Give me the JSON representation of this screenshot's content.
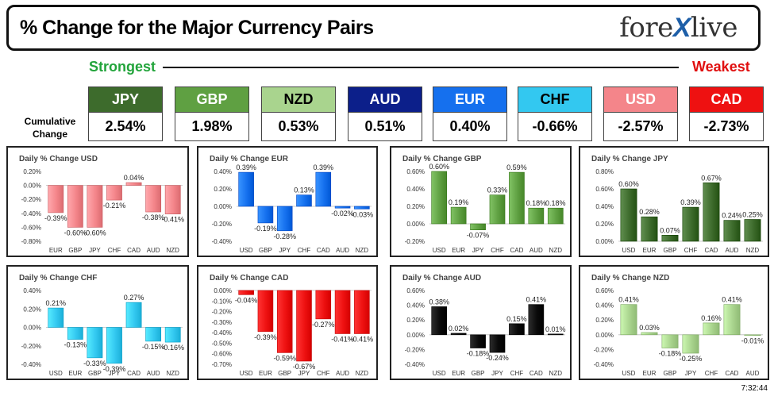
{
  "header": {
    "title": "% Change for the Major Currency Pairs",
    "logo_left": "fore",
    "logo_x": "X",
    "logo_right": "live"
  },
  "ranking": {
    "strongest_label": "Strongest",
    "weakest_label": "Weakest",
    "cumulative_label_line1": "Cumulative",
    "cumulative_label_line2": "Change",
    "currencies": [
      {
        "code": "JPY",
        "change": "2.54%",
        "color": "#3d6b2c",
        "text_color": "#ffffff"
      },
      {
        "code": "GBP",
        "change": "1.98%",
        "color": "#5fa042",
        "text_color": "#ffffff"
      },
      {
        "code": "NZD",
        "change": "0.53%",
        "color": "#a9d48e",
        "text_color": "#000000"
      },
      {
        "code": "AUD",
        "change": "0.51%",
        "color": "#0c1f8a",
        "text_color": "#ffffff"
      },
      {
        "code": "EUR",
        "change": "0.40%",
        "color": "#1570ee",
        "text_color": "#ffffff"
      },
      {
        "code": "CHF",
        "change": "-0.66%",
        "color": "#33c8f0",
        "text_color": "#000000"
      },
      {
        "code": "USD",
        "change": "-2.57%",
        "color": "#f4858a",
        "text_color": "#ffffff"
      },
      {
        "code": "CAD",
        "change": "-2.73%",
        "color": "#ee1111",
        "text_color": "#ffffff"
      }
    ]
  },
  "timestamp": "7:32:44",
  "chart_data": [
    {
      "type": "bar",
      "title": "Daily % Change USD",
      "color": "#f4858a",
      "categories": [
        "EUR",
        "GBP",
        "JPY",
        "CHF",
        "CAD",
        "AUD",
        "NZD"
      ],
      "values": [
        -0.39,
        -0.6,
        -0.6,
        -0.21,
        0.04,
        -0.38,
        -0.41
      ],
      "labels": [
        "-0.39%",
        "-0.60%",
        "-0.60%",
        "-0.21%",
        "0.04%",
        "-0.38%",
        "-0.41%"
      ],
      "ylim": [
        -0.8,
        0.2
      ],
      "ticks": [
        0.2,
        0.0,
        -0.2,
        -0.4,
        -0.6,
        -0.8
      ],
      "tick_labels": [
        "0.20%",
        "0.00%",
        "-0.20%",
        "-0.40%",
        "-0.60%",
        "-0.80%"
      ]
    },
    {
      "type": "bar",
      "title": "Daily % Change EUR",
      "color": "#1570ee",
      "categories": [
        "USD",
        "GBP",
        "JPY",
        "CHF",
        "CAD",
        "AUD",
        "NZD"
      ],
      "values": [
        0.39,
        -0.19,
        -0.28,
        0.13,
        0.39,
        -0.02,
        -0.03
      ],
      "labels": [
        "0.39%",
        "-0.19%",
        "-0.28%",
        "0.13%",
        "0.39%",
        "-0.02%",
        "-0.03%"
      ],
      "ylim": [
        -0.4,
        0.4
      ],
      "ticks": [
        0.4,
        0.2,
        0.0,
        -0.2,
        -0.4
      ],
      "tick_labels": [
        "0.40%",
        "0.20%",
        "0.00%",
        "-0.20%",
        "-0.40%"
      ]
    },
    {
      "type": "bar",
      "title": "Daily % Change GBP",
      "color": "#5fa042",
      "categories": [
        "USD",
        "EUR",
        "JPY",
        "CHF",
        "CAD",
        "AUD",
        "NZD"
      ],
      "values": [
        0.6,
        0.19,
        -0.07,
        0.33,
        0.59,
        0.18,
        0.18
      ],
      "labels": [
        "0.60%",
        "0.19%",
        "-0.07%",
        "0.33%",
        "0.59%",
        "0.18%",
        "0.18%"
      ],
      "ylim": [
        -0.2,
        0.6
      ],
      "ticks": [
        0.6,
        0.4,
        0.2,
        0.0,
        -0.2
      ],
      "tick_labels": [
        "0.60%",
        "0.40%",
        "0.20%",
        "0.00%",
        "-0.20%"
      ]
    },
    {
      "type": "bar",
      "title": "Daily % Change JPY",
      "color": "#3d6b2c",
      "categories": [
        "USD",
        "EUR",
        "GBP",
        "CHF",
        "CAD",
        "AUD",
        "NZD"
      ],
      "values": [
        0.6,
        0.28,
        0.07,
        0.39,
        0.67,
        0.24,
        0.25
      ],
      "labels": [
        "0.60%",
        "0.28%",
        "0.07%",
        "0.39%",
        "0.67%",
        "0.24%",
        "0.25%"
      ],
      "ylim": [
        0.0,
        0.8
      ],
      "ticks": [
        0.8,
        0.6,
        0.4,
        0.2,
        0.0
      ],
      "tick_labels": [
        "0.80%",
        "0.60%",
        "0.40%",
        "0.20%",
        "0.00%"
      ]
    },
    {
      "type": "bar",
      "title": "Daily % Change CHF",
      "color": "#33c8f0",
      "categories": [
        "USD",
        "EUR",
        "GBP",
        "JPY",
        "CAD",
        "AUD",
        "NZD"
      ],
      "values": [
        0.21,
        -0.13,
        -0.33,
        -0.39,
        0.27,
        -0.15,
        -0.16
      ],
      "labels": [
        "0.21%",
        "-0.13%",
        "-0.33%",
        "-0.39%",
        "0.27%",
        "-0.15%",
        "-0.16%"
      ],
      "ylim": [
        -0.4,
        0.4
      ],
      "ticks": [
        0.4,
        0.2,
        0.0,
        -0.2,
        -0.4
      ],
      "tick_labels": [
        "0.40%",
        "0.20%",
        "0.00%",
        "-0.20%",
        "-0.40%"
      ]
    },
    {
      "type": "bar",
      "title": "Daily % Change CAD",
      "color": "#ee1111",
      "categories": [
        "USD",
        "EUR",
        "GBP",
        "JPY",
        "CHF",
        "AUD",
        "NZD"
      ],
      "values": [
        -0.04,
        -0.39,
        -0.59,
        -0.67,
        -0.27,
        -0.41,
        -0.41
      ],
      "labels": [
        "-0.04%",
        "-0.39%",
        "-0.59%",
        "-0.67%",
        "-0.27%",
        "-0.41%",
        "-0.41%"
      ],
      "ylim": [
        -0.7,
        0.0
      ],
      "ticks": [
        0.0,
        -0.1,
        -0.2,
        -0.3,
        -0.4,
        -0.5,
        -0.6,
        -0.7
      ],
      "tick_labels": [
        "0.00%",
        "-0.10%",
        "-0.20%",
        "-0.30%",
        "-0.40%",
        "-0.50%",
        "-0.60%",
        "-0.70%"
      ]
    },
    {
      "type": "bar",
      "title": "Daily % Change AUD",
      "color": "#0a0a0a",
      "categories": [
        "USD",
        "EUR",
        "GBP",
        "JPY",
        "CHF",
        "CAD",
        "NZD"
      ],
      "values": [
        0.38,
        0.02,
        -0.18,
        -0.24,
        0.15,
        0.41,
        0.01
      ],
      "labels": [
        "0.38%",
        "0.02%",
        "-0.18%",
        "-0.24%",
        "0.15%",
        "0.41%",
        "0.01%"
      ],
      "ylim": [
        -0.4,
        0.6
      ],
      "ticks": [
        0.6,
        0.4,
        0.2,
        0.0,
        -0.2,
        -0.4
      ],
      "tick_labels": [
        "0.60%",
        "0.40%",
        "0.20%",
        "0.00%",
        "-0.20%",
        "-0.40%"
      ]
    },
    {
      "type": "bar",
      "title": "Daily % Change NZD",
      "color": "#a9d48e",
      "categories": [
        "USD",
        "EUR",
        "GBP",
        "JPY",
        "CHF",
        "CAD",
        "AUD"
      ],
      "values": [
        0.41,
        0.03,
        -0.18,
        -0.25,
        0.16,
        0.41,
        -0.01
      ],
      "labels": [
        "0.41%",
        "0.03%",
        "-0.18%",
        "-0.25%",
        "0.16%",
        "0.41%",
        "-0.01%"
      ],
      "ylim": [
        -0.4,
        0.6
      ],
      "ticks": [
        0.6,
        0.4,
        0.2,
        0.0,
        -0.2,
        -0.4
      ],
      "tick_labels": [
        "0.60%",
        "0.40%",
        "0.20%",
        "0.00%",
        "-0.20%",
        "-0.40%"
      ]
    }
  ]
}
